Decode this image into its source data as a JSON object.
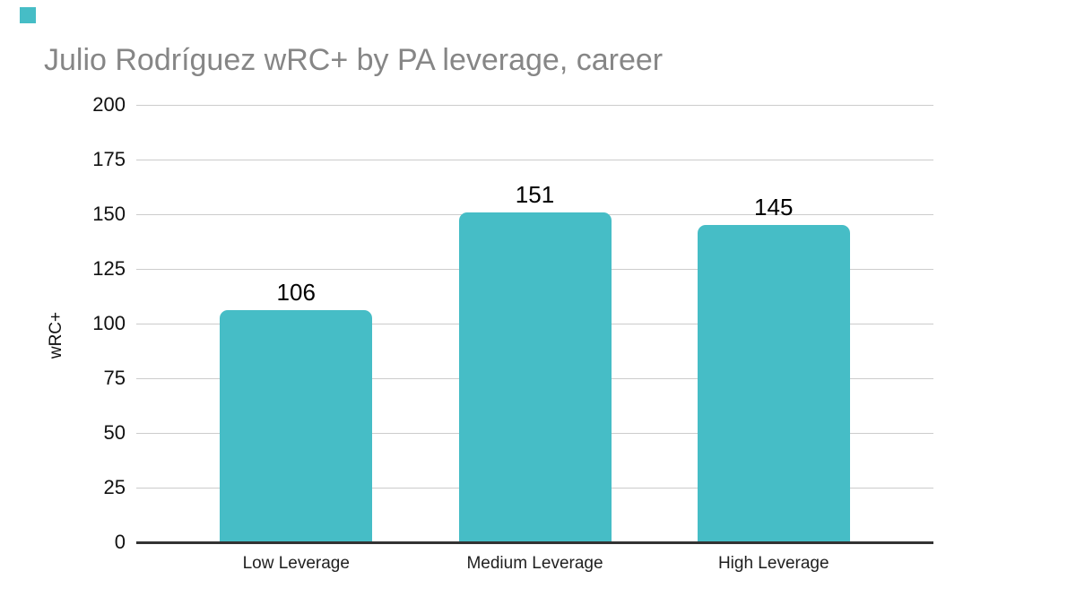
{
  "title": "Julio Rodríguez wRC+ by PA leverage, career",
  "colors": {
    "accent": "#46bdc6",
    "title_text": "#868686",
    "gridline": "#cccccc",
    "axis_line": "#333333",
    "label_text": "#000000"
  },
  "chart_data": {
    "type": "bar",
    "title": "Julio Rodríguez wRC+ by PA leverage, career",
    "categories": [
      "Low Leverage",
      "Medium Leverage",
      "High Leverage"
    ],
    "values": [
      106,
      151,
      145
    ],
    "value_labels": [
      "106",
      "151",
      "145"
    ],
    "xlabel": "",
    "ylabel": "wRC+",
    "ylim": [
      0,
      200
    ],
    "yticks": [
      0,
      25,
      50,
      75,
      100,
      125,
      150,
      175,
      200
    ],
    "grid": true,
    "legend": "none",
    "bar_color": "#46bdc6"
  }
}
